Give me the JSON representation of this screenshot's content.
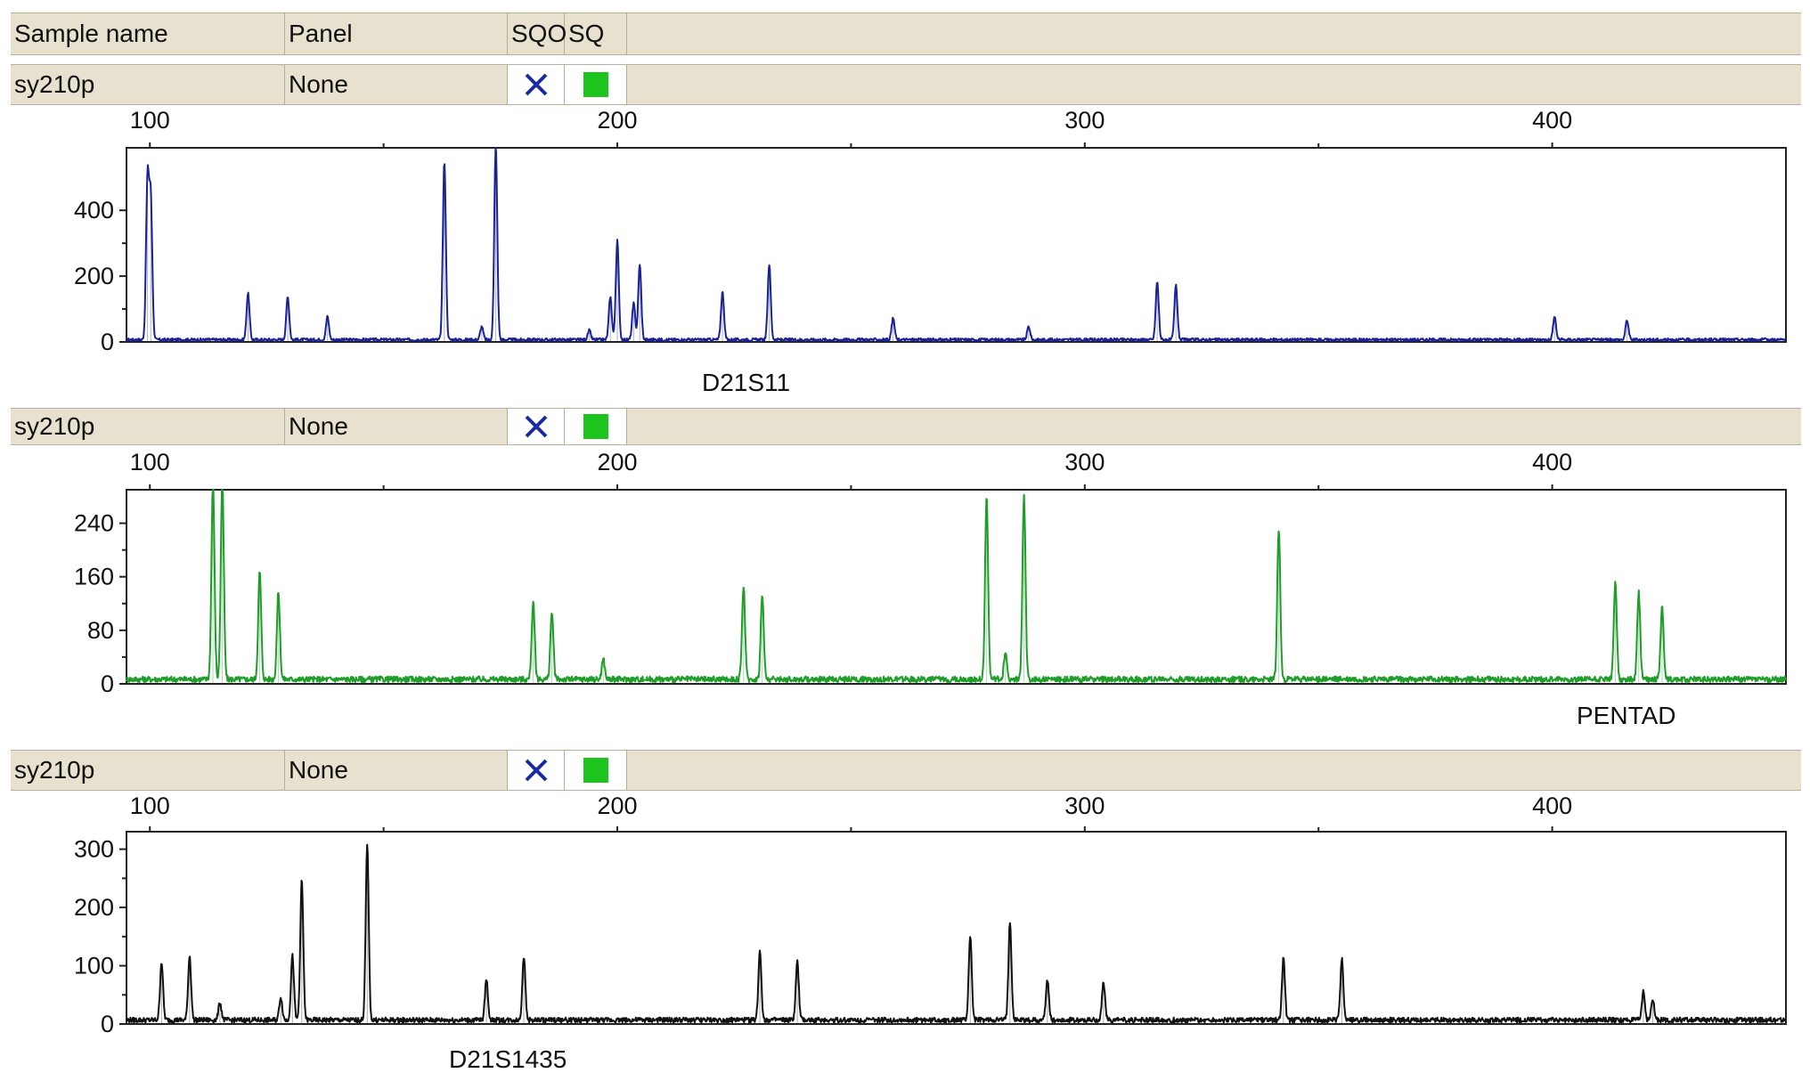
{
  "header": {
    "col_sample": "Sample name",
    "col_panel": "Panel",
    "col_sqo": "SQO",
    "col_sq": "SQ"
  },
  "colors": {
    "panel_bg": "#e8e1cf",
    "sq_green": "#1dc41d",
    "x_blue": "#1a2b9c",
    "trace_blue": "#1a2396",
    "trace_green": "#1e9e28",
    "trace_black": "#111111"
  },
  "rows": [
    {
      "sample": "sy210p",
      "panel": "None",
      "sqo_icon": "x-icon",
      "sq_icon": "green-square-icon",
      "marker": "D21S11",
      "chart_data": {
        "type": "line",
        "xlabel": "",
        "ylabel": "",
        "xlim": [
          95,
          450
        ],
        "ylim": [
          0,
          590
        ],
        "x_ticks": [
          100,
          200,
          300,
          400
        ],
        "y_ticks": [
          0,
          200,
          400
        ],
        "color": "#1a2396",
        "baseline": 8,
        "peaks": [
          {
            "x": 99.5,
            "h": 480
          },
          {
            "x": 100.2,
            "h": 420
          },
          {
            "x": 121,
            "h": 140
          },
          {
            "x": 129.5,
            "h": 130
          },
          {
            "x": 138,
            "h": 70
          },
          {
            "x": 163,
            "h": 540
          },
          {
            "x": 171,
            "h": 40
          },
          {
            "x": 174,
            "h": 590
          },
          {
            "x": 194,
            "h": 28
          },
          {
            "x": 198.5,
            "h": 130
          },
          {
            "x": 200,
            "h": 300
          },
          {
            "x": 203.5,
            "h": 110
          },
          {
            "x": 204.8,
            "h": 230
          },
          {
            "x": 222.5,
            "h": 145
          },
          {
            "x": 232.5,
            "h": 230
          },
          {
            "x": 259,
            "h": 65
          },
          {
            "x": 288,
            "h": 40
          },
          {
            "x": 315.5,
            "h": 175
          },
          {
            "x": 319.5,
            "h": 165
          },
          {
            "x": 400.5,
            "h": 70
          },
          {
            "x": 416,
            "h": 60
          }
        ]
      }
    },
    {
      "sample": "sy210p",
      "panel": "None",
      "sqo_icon": "x-icon",
      "sq_icon": "green-square-icon",
      "marker": "PENTAD",
      "chart_data": {
        "type": "line",
        "xlabel": "",
        "ylabel": "",
        "xlim": [
          95,
          450
        ],
        "ylim": [
          0,
          290
        ],
        "x_ticks": [
          100,
          200,
          300,
          400
        ],
        "y_ticks": [
          0,
          80,
          160,
          240
        ],
        "color": "#1e9e28",
        "baseline": 8,
        "peaks": [
          {
            "x": 113.5,
            "h": 300
          },
          {
            "x": 115.5,
            "h": 300
          },
          {
            "x": 123.5,
            "h": 160
          },
          {
            "x": 127.5,
            "h": 130
          },
          {
            "x": 182,
            "h": 115
          },
          {
            "x": 186,
            "h": 100
          },
          {
            "x": 197,
            "h": 30
          },
          {
            "x": 227,
            "h": 140
          },
          {
            "x": 231,
            "h": 125
          },
          {
            "x": 279,
            "h": 275
          },
          {
            "x": 283,
            "h": 40
          },
          {
            "x": 287,
            "h": 275
          },
          {
            "x": 341.5,
            "h": 225
          },
          {
            "x": 413.5,
            "h": 145
          },
          {
            "x": 418.5,
            "h": 130
          },
          {
            "x": 423.5,
            "h": 110
          }
        ]
      }
    },
    {
      "sample": "sy210p",
      "panel": "None",
      "sqo_icon": "x-icon",
      "sq_icon": "green-square-icon",
      "marker": "D21S1435",
      "chart_data": {
        "type": "line",
        "xlabel": "",
        "ylabel": "",
        "xlim": [
          95,
          450
        ],
        "ylim": [
          0,
          330
        ],
        "x_ticks": [
          100,
          200,
          300,
          400
        ],
        "y_ticks": [
          0,
          100,
          200,
          300
        ],
        "color": "#111111",
        "baseline": 8,
        "peaks": [
          {
            "x": 102.5,
            "h": 100
          },
          {
            "x": 108.5,
            "h": 110
          },
          {
            "x": 115,
            "h": 30
          },
          {
            "x": 128,
            "h": 40
          },
          {
            "x": 130.5,
            "h": 110
          },
          {
            "x": 132.5,
            "h": 240
          },
          {
            "x": 146.5,
            "h": 300
          },
          {
            "x": 172,
            "h": 70
          },
          {
            "x": 180,
            "h": 110
          },
          {
            "x": 230.5,
            "h": 120
          },
          {
            "x": 238.5,
            "h": 100
          },
          {
            "x": 275.5,
            "h": 145
          },
          {
            "x": 284,
            "h": 170
          },
          {
            "x": 292,
            "h": 70
          },
          {
            "x": 304,
            "h": 65
          },
          {
            "x": 342.5,
            "h": 105
          },
          {
            "x": 355,
            "h": 105
          },
          {
            "x": 419.5,
            "h": 50
          },
          {
            "x": 421.5,
            "h": 35
          }
        ]
      }
    }
  ]
}
